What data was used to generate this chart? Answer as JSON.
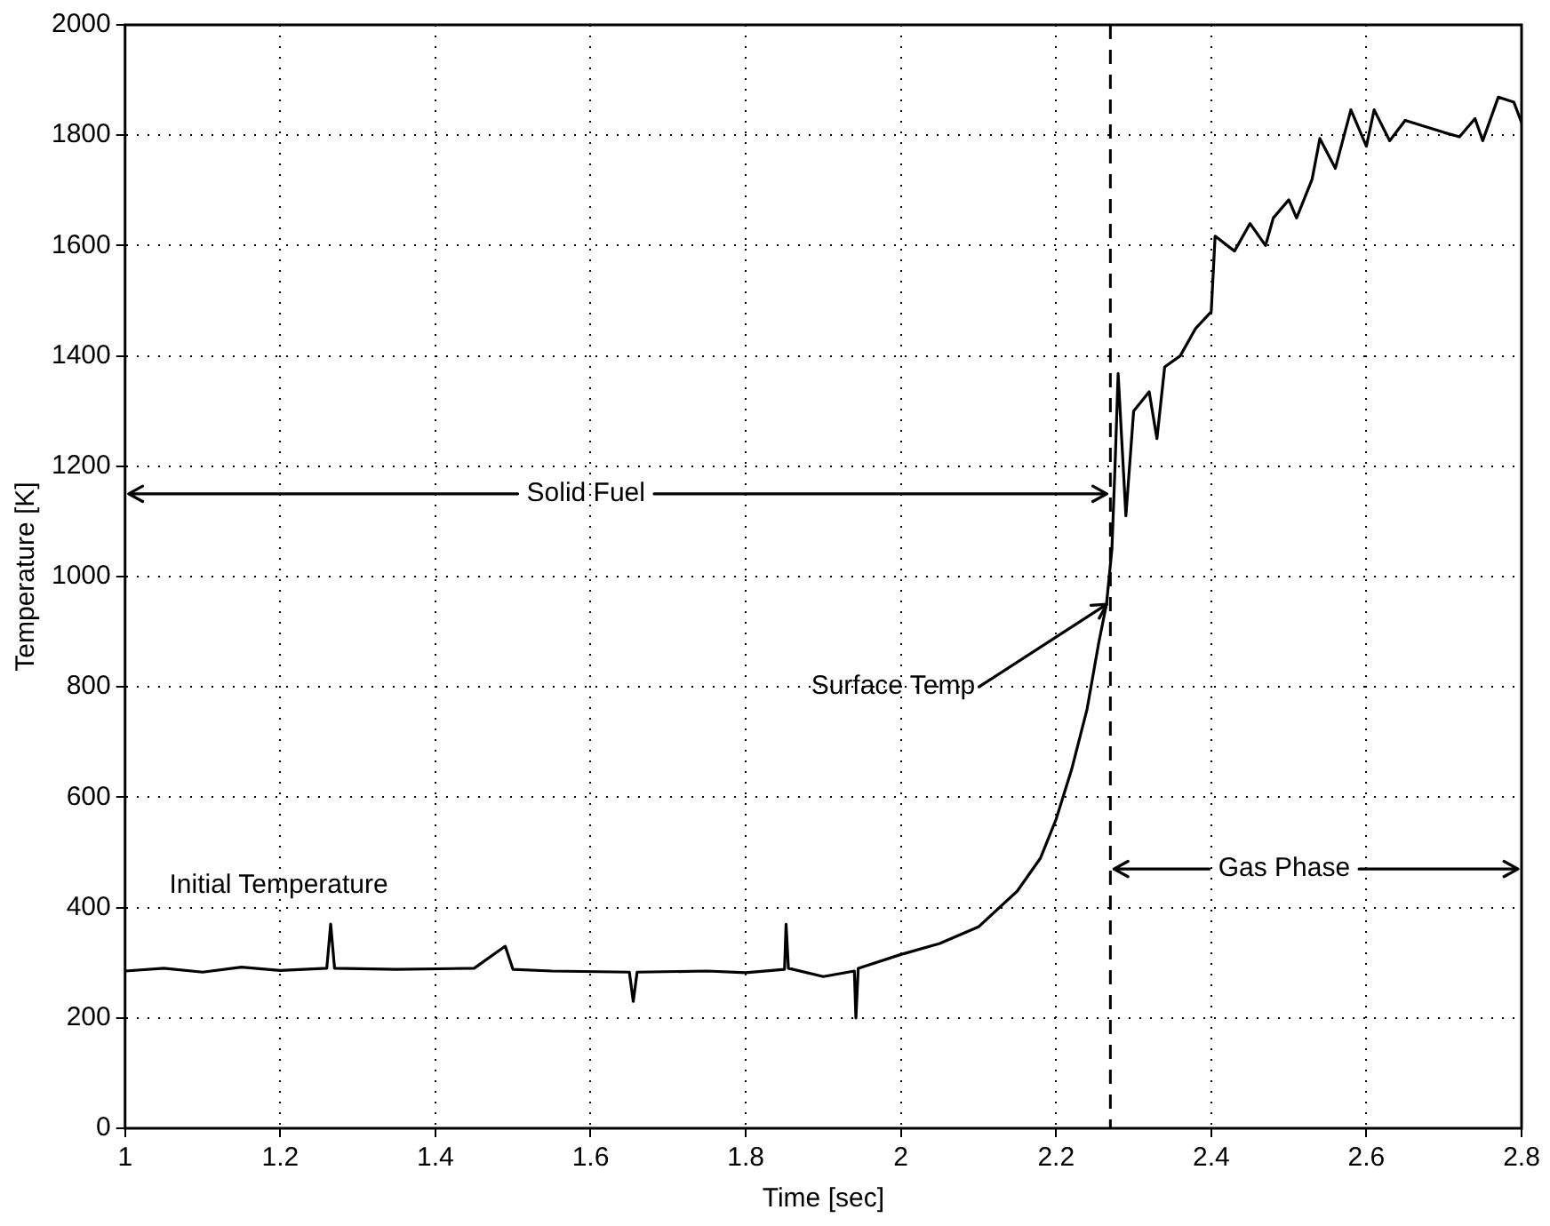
{
  "chart_data": {
    "type": "line",
    "xlabel": "Time [sec]",
    "ylabel": "Temperature [K]",
    "x": [
      1.0,
      1.05,
      1.1,
      1.15,
      1.2,
      1.26,
      1.265,
      1.27,
      1.35,
      1.45,
      1.49,
      1.5,
      1.55,
      1.65,
      1.655,
      1.66,
      1.75,
      1.8,
      1.85,
      1.852,
      1.855,
      1.9,
      1.94,
      1.942,
      1.945,
      2.0,
      2.05,
      2.1,
      2.15,
      2.18,
      2.2,
      2.22,
      2.24,
      2.255,
      2.265,
      2.272,
      2.276,
      2.28,
      2.29,
      2.3,
      2.32,
      2.33,
      2.34,
      2.36,
      2.38,
      2.4,
      2.405,
      2.43,
      2.45,
      2.47,
      2.48,
      2.5,
      2.51,
      2.53,
      2.54,
      2.56,
      2.58,
      2.6,
      2.61,
      2.63,
      2.65,
      2.7,
      2.72,
      2.74,
      2.75,
      2.77,
      2.79,
      2.8
    ],
    "series": [
      {
        "color": "#000000",
        "values": [
          285,
          290,
          283,
          292,
          286,
          290,
          370,
          290,
          288,
          290,
          330,
          288,
          285,
          283,
          230,
          283,
          285,
          282,
          288,
          370,
          290,
          275,
          285,
          200,
          290,
          315,
          335,
          365,
          430,
          490,
          560,
          650,
          760,
          880,
          950,
          1050,
          1200,
          1368,
          1110,
          1300,
          1335,
          1250,
          1380,
          1400,
          1450,
          1480,
          1617,
          1590,
          1640,
          1600,
          1650,
          1683,
          1650,
          1720,
          1794,
          1740,
          1846,
          1780,
          1846,
          1790,
          1827,
          1805,
          1797,
          1830,
          1790,
          1869,
          1860,
          1823
        ]
      }
    ],
    "xlim": [
      1,
      2.8
    ],
    "xticks": [
      1,
      1.2,
      1.4,
      1.6,
      1.8,
      2,
      2.2,
      2.4,
      2.6,
      2.8
    ],
    "ylim": [
      0,
      2000
    ],
    "yticks": [
      0,
      200,
      400,
      600,
      800,
      1000,
      1200,
      1400,
      1600,
      1800,
      2000
    ],
    "grid": true,
    "legend": false,
    "marker": "none",
    "line_style": "solid",
    "ref_lines": [
      {
        "axis": "x",
        "value": 2.27,
        "line_style": "dashed",
        "color": "#000000"
      }
    ],
    "annotations": [
      {
        "text": "Solid Fuel",
        "x": 2.27,
        "y": 1150
      },
      {
        "text": "Surface Temp",
        "x": 2.27,
        "y": 950
      },
      "Initial Temperature",
      "Gas Phase"
    ]
  }
}
